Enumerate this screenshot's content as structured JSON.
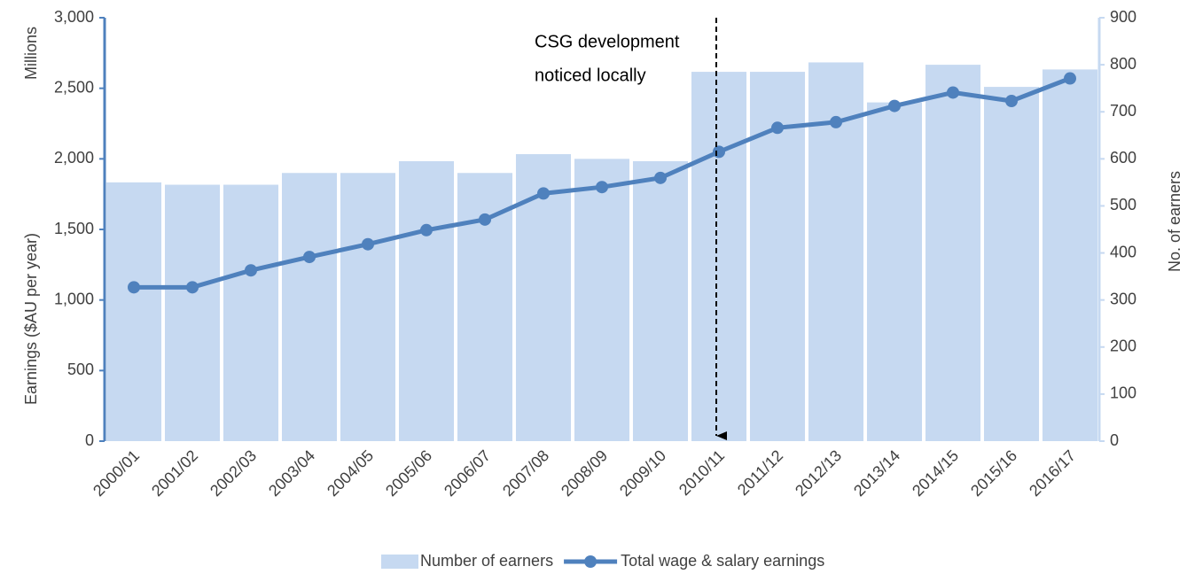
{
  "chart_data": {
    "type": "bar-line",
    "categories": [
      "2000/01",
      "2001/02",
      "2002/03",
      "2003/04",
      "2004/05",
      "2005/06",
      "2006/07",
      "2007/08",
      "2008/09",
      "2009/10",
      "2010/11",
      "2011/12",
      "2012/13",
      "2013/14",
      "2014/15",
      "2015/16",
      "2016/17"
    ],
    "series": [
      {
        "name": "Number of earners",
        "type": "bar",
        "axis": "y2",
        "color": "#c6d9f1",
        "values": [
          550,
          545,
          545,
          570,
          570,
          595,
          570,
          610,
          600,
          595,
          785,
          785,
          805,
          720,
          800,
          753,
          790
        ]
      },
      {
        "name": "Total wage & salary earnings",
        "type": "line",
        "axis": "y",
        "color": "#4f81bd",
        "values": [
          1090,
          1090,
          1210,
          1305,
          1395,
          1495,
          1570,
          1755,
          1800,
          1865,
          2050,
          2220,
          2260,
          2375,
          2470,
          2410,
          2570
        ]
      }
    ],
    "ylabel": "Earnings ($AU per year)",
    "ylabel_unit": "Millions",
    "y2label": "No. of earners",
    "ylim": [
      0,
      3000
    ],
    "yticks": [
      {
        "value": 0,
        "label": "0"
      },
      {
        "value": 500,
        "label": "500"
      },
      {
        "value": 1000,
        "label": "1,000"
      },
      {
        "value": 1500,
        "label": "1,500"
      },
      {
        "value": 2000,
        "label": "2,000"
      },
      {
        "value": 2500,
        "label": "2,500"
      },
      {
        "value": 3000,
        "label": "3,000"
      }
    ],
    "y2lim": [
      0,
      900
    ],
    "y2ticks": [
      0,
      100,
      200,
      300,
      400,
      500,
      600,
      700,
      800,
      900
    ],
    "annotation": [
      "CSG development",
      "noticed locally"
    ],
    "legend": "bottom"
  }
}
